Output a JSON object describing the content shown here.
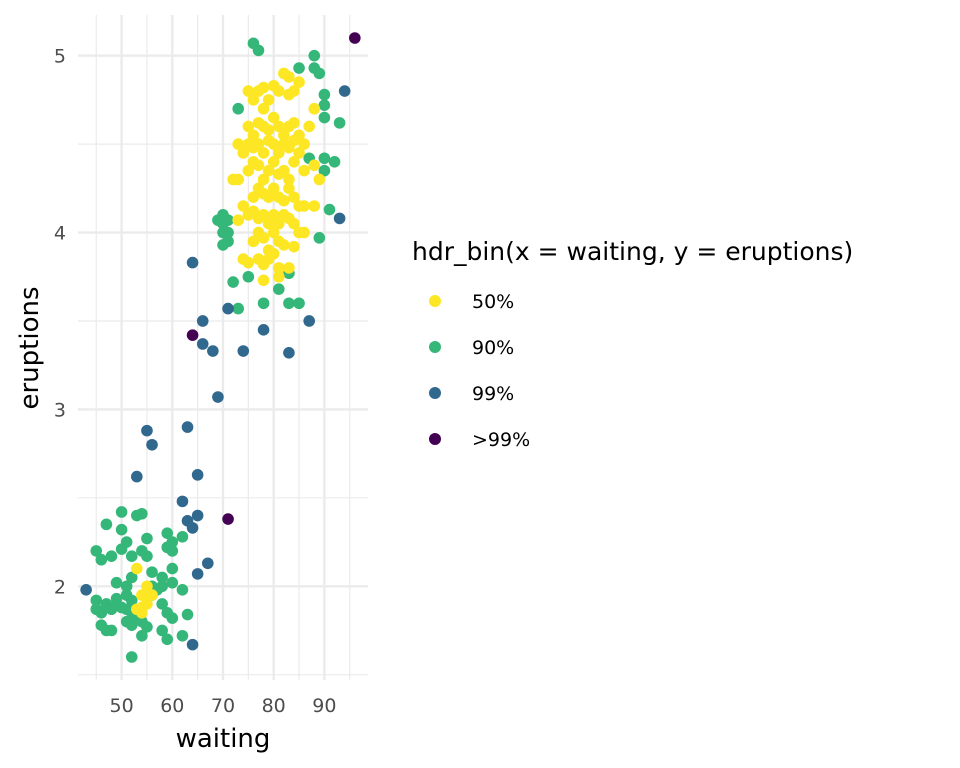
{
  "chart_data": {
    "type": "scatter",
    "title": "",
    "xlabel": "waiting",
    "ylabel": "eruptions",
    "xlim": [
      41.4,
      98.6
    ],
    "ylim": [
      1.47,
      5.23
    ],
    "x_ticks": [
      50,
      60,
      70,
      80,
      90
    ],
    "y_ticks": [
      2,
      3,
      4,
      5
    ],
    "grid": true,
    "legend": {
      "title": "hdr_bin(x = waiting, y = eruptions)",
      "position": "right",
      "entries": [
        {
          "label": "50%",
          "color": "#FDE725"
        },
        {
          "label": "90%",
          "color": "#35B779"
        },
        {
          "label": "99%",
          "color": "#31688E"
        },
        {
          "label": ">99%",
          "color": "#440154"
        }
      ]
    },
    "series": [
      {
        "name": "50%",
        "color": "#FDE725",
        "points": [
          [
            53,
            2.1
          ],
          [
            54,
            1.95
          ],
          [
            54,
            1.88
          ],
          [
            55,
            1.9
          ],
          [
            53,
            1.87
          ],
          [
            55,
            2.0
          ],
          [
            56,
            1.95
          ],
          [
            54,
            1.85
          ],
          [
            75,
            4.8
          ],
          [
            76,
            4.75
          ],
          [
            77,
            4.8
          ],
          [
            78,
            4.82
          ],
          [
            78,
            4.7
          ],
          [
            79,
            4.75
          ],
          [
            80,
            4.83
          ],
          [
            81,
            4.8
          ],
          [
            83,
            4.78
          ],
          [
            84,
            4.8
          ],
          [
            82,
            4.9
          ],
          [
            83,
            4.88
          ],
          [
            85,
            4.85
          ],
          [
            88,
            4.7
          ],
          [
            75,
            4.6
          ],
          [
            76,
            4.55
          ],
          [
            77,
            4.62
          ],
          [
            78,
            4.6
          ],
          [
            79,
            4.58
          ],
          [
            80,
            4.65
          ],
          [
            81,
            4.6
          ],
          [
            82,
            4.55
          ],
          [
            83,
            4.6
          ],
          [
            84,
            4.62
          ],
          [
            85,
            4.55
          ],
          [
            87,
            4.6
          ],
          [
            73,
            4.5
          ],
          [
            74,
            4.45
          ],
          [
            75,
            4.5
          ],
          [
            76,
            4.48
          ],
          [
            77,
            4.5
          ],
          [
            78,
            4.45
          ],
          [
            79,
            4.52
          ],
          [
            80,
            4.5
          ],
          [
            81,
            4.45
          ],
          [
            82,
            4.5
          ],
          [
            83,
            4.48
          ],
          [
            84,
            4.52
          ],
          [
            85,
            4.45
          ],
          [
            86,
            4.5
          ],
          [
            75,
            4.35
          ],
          [
            76,
            4.4
          ],
          [
            77,
            4.38
          ],
          [
            78,
            4.3
          ],
          [
            79,
            4.35
          ],
          [
            80,
            4.4
          ],
          [
            81,
            4.33
          ],
          [
            82,
            4.35
          ],
          [
            83,
            4.3
          ],
          [
            84,
            4.4
          ],
          [
            86,
            4.35
          ],
          [
            88,
            4.38
          ],
          [
            89,
            4.3
          ],
          [
            72,
            4.3
          ],
          [
            73,
            4.3
          ],
          [
            76,
            4.2
          ],
          [
            77,
            4.25
          ],
          [
            78,
            4.22
          ],
          [
            79,
            4.2
          ],
          [
            80,
            4.25
          ],
          [
            81,
            4.2
          ],
          [
            82,
            4.18
          ],
          [
            83,
            4.25
          ],
          [
            84,
            4.2
          ],
          [
            85,
            4.15
          ],
          [
            86,
            4.15
          ],
          [
            88,
            4.15
          ],
          [
            74,
            4.15
          ],
          [
            75,
            4.1
          ],
          [
            76,
            4.12
          ],
          [
            77,
            4.08
          ],
          [
            78,
            4.1
          ],
          [
            79,
            4.05
          ],
          [
            80,
            4.1
          ],
          [
            81,
            4.05
          ],
          [
            82,
            4.1
          ],
          [
            83,
            4.08
          ],
          [
            84,
            4.05
          ],
          [
            73,
            4.07
          ],
          [
            76,
            3.95
          ],
          [
            77,
            4.0
          ],
          [
            78,
            3.97
          ],
          [
            79,
            3.9
          ],
          [
            80,
            4.0
          ],
          [
            81,
            3.95
          ],
          [
            82,
            3.93
          ],
          [
            84,
            3.92
          ],
          [
            85,
            4.0
          ],
          [
            86,
            4.0
          ],
          [
            74,
            3.85
          ],
          [
            75,
            3.83
          ],
          [
            77,
            3.85
          ],
          [
            78,
            3.82
          ],
          [
            79,
            3.85
          ],
          [
            81,
            3.8
          ],
          [
            80,
            3.88
          ],
          [
            78,
            3.73
          ],
          [
            81,
            3.75
          ],
          [
            83,
            3.8
          ]
        ]
      },
      {
        "name": "90%",
        "color": "#35B779",
        "points": [
          [
            76,
            5.07
          ],
          [
            77,
            5.03
          ],
          [
            88,
            5.0
          ],
          [
            85,
            4.93
          ],
          [
            88,
            4.93
          ],
          [
            89,
            4.9
          ],
          [
            90,
            4.78
          ],
          [
            90,
            4.72
          ],
          [
            90,
            4.65
          ],
          [
            93,
            4.62
          ],
          [
            73,
            4.7
          ],
          [
            87,
            4.42
          ],
          [
            90,
            4.42
          ],
          [
            92,
            4.4
          ],
          [
            90,
            4.35
          ],
          [
            91,
            4.13
          ],
          [
            70,
            4.1
          ],
          [
            71,
            4.07
          ],
          [
            70,
            4.05
          ],
          [
            71,
            4.0
          ],
          [
            69,
            4.07
          ],
          [
            70,
            4.0
          ],
          [
            71,
            3.95
          ],
          [
            70,
            3.93
          ],
          [
            89,
            3.97
          ],
          [
            75,
            3.75
          ],
          [
            72,
            3.72
          ],
          [
            83,
            3.77
          ],
          [
            78,
            3.6
          ],
          [
            81,
            3.68
          ],
          [
            83,
            3.6
          ],
          [
            85,
            3.6
          ],
          [
            73,
            3.57
          ],
          [
            45,
            2.2
          ],
          [
            47,
            2.35
          ],
          [
            50,
            2.42
          ],
          [
            51,
            2.25
          ],
          [
            52,
            2.17
          ],
          [
            50,
            2.32
          ],
          [
            53,
            2.4
          ],
          [
            54,
            2.41
          ],
          [
            55,
            2.27
          ],
          [
            54,
            2.2
          ],
          [
            55,
            2.17
          ],
          [
            59,
            2.3
          ],
          [
            60,
            2.25
          ],
          [
            59,
            2.22
          ],
          [
            60,
            2.2
          ],
          [
            62,
            2.28
          ],
          [
            46,
            2.15
          ],
          [
            48,
            2.17
          ],
          [
            50,
            2.21
          ],
          [
            52,
            2.05
          ],
          [
            51,
            2.0
          ],
          [
            49,
            2.02
          ],
          [
            56,
            2.08
          ],
          [
            58,
            2.05
          ],
          [
            60,
            2.1
          ],
          [
            56,
            2.0
          ],
          [
            58,
            2.0
          ],
          [
            60,
            2.02
          ],
          [
            62,
            1.98
          ],
          [
            45,
            1.92
          ],
          [
            47,
            1.9
          ],
          [
            49,
            1.93
          ],
          [
            51,
            1.95
          ],
          [
            52,
            1.92
          ],
          [
            45,
            1.87
          ],
          [
            46,
            1.85
          ],
          [
            47,
            1.88
          ],
          [
            48,
            1.87
          ],
          [
            49,
            1.89
          ],
          [
            50,
            1.88
          ],
          [
            51,
            1.87
          ],
          [
            52,
            1.85
          ],
          [
            58,
            1.9
          ],
          [
            59,
            1.85
          ],
          [
            60,
            1.82
          ],
          [
            63,
            1.84
          ],
          [
            46,
            1.78
          ],
          [
            47,
            1.75
          ],
          [
            48,
            1.75
          ],
          [
            51,
            1.8
          ],
          [
            52,
            1.78
          ],
          [
            54,
            1.8
          ],
          [
            55,
            1.77
          ],
          [
            53,
            1.82
          ],
          [
            58,
            1.75
          ],
          [
            59,
            1.7
          ],
          [
            62,
            1.72
          ],
          [
            54,
            1.72
          ],
          [
            52,
            1.6
          ],
          [
            56,
            1.95
          ],
          [
            57,
            1.98
          ]
        ]
      },
      {
        "name": "99%",
        "color": "#31688E",
        "points": [
          [
            94,
            4.8
          ],
          [
            93,
            4.08
          ],
          [
            64,
            3.83
          ],
          [
            66,
            3.5
          ],
          [
            71,
            3.57
          ],
          [
            87,
            3.5
          ],
          [
            78,
            3.45
          ],
          [
            66,
            3.37
          ],
          [
            68,
            3.33
          ],
          [
            74,
            3.33
          ],
          [
            83,
            3.32
          ],
          [
            69,
            3.07
          ],
          [
            55,
            2.88
          ],
          [
            63,
            2.9
          ],
          [
            56,
            2.8
          ],
          [
            65,
            2.63
          ],
          [
            53,
            2.62
          ],
          [
            62,
            2.48
          ],
          [
            65,
            2.4
          ],
          [
            63,
            2.37
          ],
          [
            64,
            2.33
          ],
          [
            67,
            2.13
          ],
          [
            65,
            2.07
          ],
          [
            43,
            1.98
          ],
          [
            64,
            1.67
          ]
        ]
      },
      {
        "name": ">99%",
        "color": "#440154",
        "points": [
          [
            96,
            5.1
          ],
          [
            64,
            3.42
          ],
          [
            71,
            2.38
          ]
        ]
      }
    ]
  }
}
